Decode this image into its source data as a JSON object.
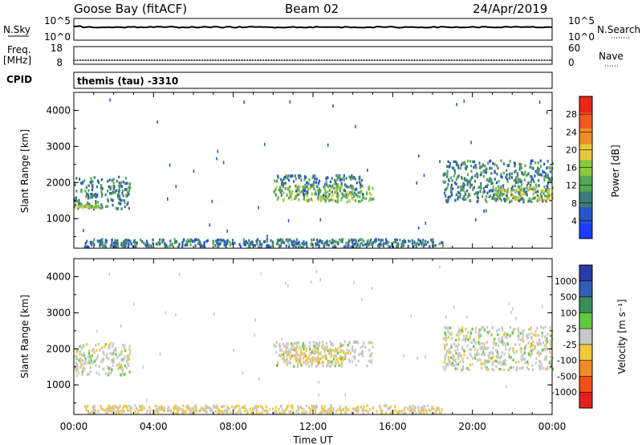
{
  "header": {
    "station": "Goose Bay (fitACF)",
    "beam": "Beam 02",
    "date": "24/Apr/2019"
  },
  "noise_panel": {
    "left_label": "N.Sky",
    "left_ticks": [
      "10^5",
      "10^0"
    ],
    "right_ticks": [
      "10^5",
      "10^0"
    ],
    "right_label": "N.Search"
  },
  "freq_panel": {
    "left_label_top": "Freq.",
    "left_label_bottom": "[MHz]",
    "left_ticks": [
      "18",
      "8"
    ],
    "right_ticks": [
      "60",
      "0"
    ],
    "right_label": "Nave"
  },
  "cpid_panel": {
    "label": "CPID",
    "program": "themis (tau) -3310"
  },
  "axes": {
    "xlabel": "Time UT",
    "x_ticks": [
      "00:00",
      "04:00",
      "08:00",
      "12:00",
      "16:00",
      "20:00",
      "00:00"
    ],
    "ylabel": "Slant Range [km]",
    "y_ticks": [
      "1000",
      "2000",
      "3000",
      "4000"
    ]
  },
  "colorbars": {
    "power": {
      "label": "Power [dB]",
      "ticks": [
        "4",
        "8",
        "12",
        "16",
        "20",
        "24",
        "28"
      ],
      "colors": [
        "#1e3cff",
        "#2a55c8",
        "#3c7a7a",
        "#55a855",
        "#8cc83c",
        "#e6c83c",
        "#f08c28",
        "#f05a1e",
        "#e62814"
      ]
    },
    "velocity": {
      "label": "Velocity [m s⁻¹]",
      "ticks": [
        "1000",
        "500",
        "100",
        "25",
        "-25",
        "-100",
        "-500",
        "-1000"
      ],
      "colors": [
        "#2a3ca8",
        "#2f5fb4",
        "#3c8c5a",
        "#64c83c",
        "#c8c8c8",
        "#f0c83c",
        "#f08c28",
        "#f05014",
        "#e61e1e"
      ]
    }
  },
  "chart_data": [
    {
      "type": "line",
      "title": "N.Sky / N.Search",
      "x_range_hours": [
        0,
        24
      ],
      "yscale": "log",
      "ylim": [
        1,
        100000
      ],
      "series": [
        {
          "name": "N.Sky",
          "level": 1000,
          "color": "#000000"
        }
      ]
    },
    {
      "type": "line",
      "title": "Freq. / Nave",
      "x_range_hours": [
        0,
        24
      ],
      "ylim": [
        8,
        18
      ],
      "series": [
        {
          "name": "Freq.",
          "level": 10,
          "color": "#000000"
        }
      ]
    },
    {
      "type": "heatmap",
      "title": "Power [dB]",
      "x": "Time UT",
      "y": "Slant Range [km]",
      "xlim_hours": [
        0,
        24
      ],
      "ylim_km": [
        180,
        4500
      ],
      "clim": [
        0,
        30
      ],
      "features": [
        {
          "t0": 0.0,
          "t1": 2.8,
          "r0": 1250,
          "r1": 2150,
          "value": 9
        },
        {
          "t0": 0.0,
          "t1": 1.2,
          "r0": 1300,
          "r1": 1350,
          "value": 14
        },
        {
          "t0": 0.5,
          "t1": 18.5,
          "r0": 200,
          "r1": 420,
          "value": 8
        },
        {
          "t0": 10.0,
          "t1": 14.5,
          "r0": 1600,
          "r1": 2200,
          "value": 8
        },
        {
          "t0": 10.0,
          "t1": 15.0,
          "r0": 1450,
          "r1": 1900,
          "value": 14
        },
        {
          "t0": 18.5,
          "t1": 24.0,
          "r0": 1450,
          "r1": 2600,
          "value": 9
        },
        {
          "t0": 21.0,
          "t1": 24.0,
          "r0": 1500,
          "r1": 1900,
          "value": 16
        }
      ]
    },
    {
      "type": "heatmap",
      "title": "Velocity [m s⁻¹]",
      "x": "Time UT",
      "y": "Slant Range [km]",
      "xlim_hours": [
        0,
        24
      ],
      "ylim_km": [
        180,
        4500
      ],
      "clim": [
        -1000,
        1000
      ],
      "features": [
        {
          "t0": 0.0,
          "t1": 2.8,
          "r0": 1250,
          "r1": 2150,
          "value": 0
        },
        {
          "t0": 0.5,
          "t1": 18.5,
          "r0": 200,
          "r1": 420,
          "value": -100
        },
        {
          "t0": 10.0,
          "t1": 15.0,
          "r0": 1500,
          "r1": 2200,
          "value": 0
        },
        {
          "t0": 10.5,
          "t1": 13.5,
          "r0": 1600,
          "r1": 2000,
          "value": -200
        },
        {
          "t0": 18.5,
          "t1": 24.0,
          "r0": 1400,
          "r1": 2600,
          "value": 0
        }
      ]
    }
  ]
}
